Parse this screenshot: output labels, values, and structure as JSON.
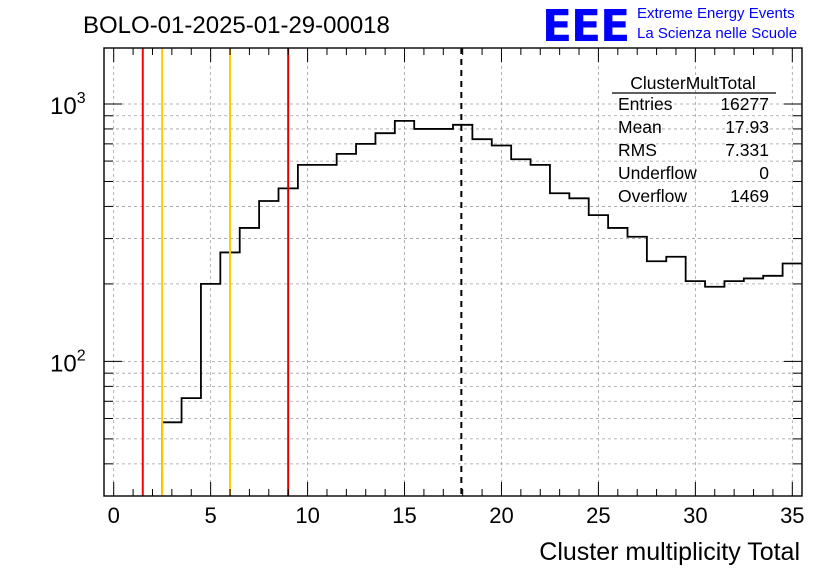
{
  "header": {
    "run_title": "BOLO-01-2025-01-29-00018",
    "logo_text": "EEE",
    "logo_line1": "Extreme Energy Events",
    "logo_line2": "La Scienza nelle Scuole",
    "logo_color": "#0000ff"
  },
  "stats_box": {
    "title": "ClusterMultTotal",
    "rows": [
      {
        "label": "Entries",
        "value": "16277"
      },
      {
        "label": "Mean",
        "value": "17.93"
      },
      {
        "label": "RMS",
        "value": "7.331"
      },
      {
        "label": "Underflow",
        "value": "0"
      },
      {
        "label": "Overflow",
        "value": "1469"
      }
    ]
  },
  "chart_data": {
    "type": "histogram",
    "title": "",
    "xlabel": "Cluster multiplicity Total",
    "ylabel": "",
    "x_scale": "linear",
    "y_scale": "log",
    "xlim": [
      -0.5,
      35.5
    ],
    "ylim": [
      30,
      1650
    ],
    "grid": true,
    "bin_width": 1,
    "bin_edges_start": -0.5,
    "x_ticks": [
      0,
      5,
      10,
      15,
      20,
      25,
      30,
      35
    ],
    "x_tick_labels": [
      "0",
      "5",
      "10",
      "15",
      "20",
      "25",
      "30",
      "35"
    ],
    "y_major_ticks": [
      100,
      1000
    ],
    "y_tick_labels": [
      {
        "base": "10",
        "exp": "2"
      },
      {
        "base": "10",
        "exp": "3"
      }
    ],
    "values": [
      0,
      0,
      0,
      58,
      72,
      200,
      265,
      330,
      420,
      470,
      580,
      580,
      640,
      700,
      770,
      860,
      800,
      800,
      830,
      730,
      690,
      610,
      580,
      450,
      430,
      370,
      330,
      305,
      245,
      255,
      205,
      195,
      205,
      210,
      215,
      240
    ],
    "vertical_lines": [
      {
        "x": 1.5,
        "color": "#ff0000",
        "style": "solid"
      },
      {
        "x": 2.5,
        "color": "#ffcc00",
        "style": "solid"
      },
      {
        "x": 6.0,
        "color": "#ffcc00",
        "style": "solid"
      },
      {
        "x": 9.0,
        "color": "#dd0000",
        "style": "solid"
      },
      {
        "x": 17.93,
        "color": "#000000",
        "style": "dashed"
      }
    ],
    "line_color": "#000000",
    "grid_color": "#a0a0a0"
  }
}
